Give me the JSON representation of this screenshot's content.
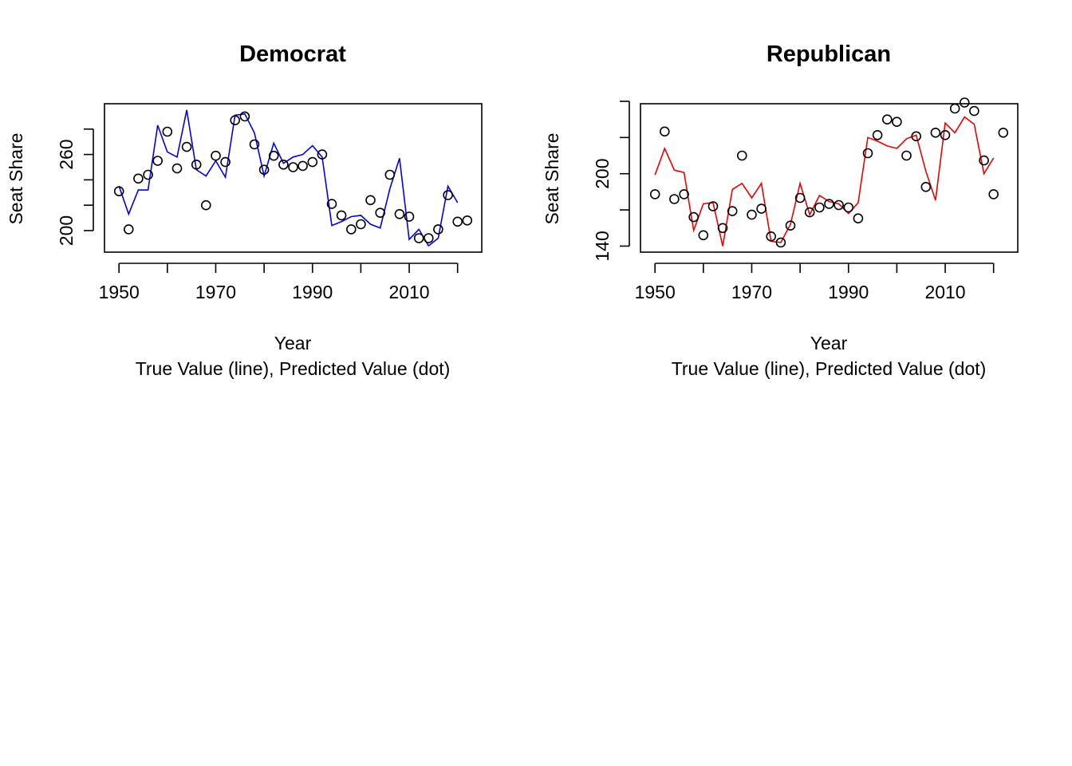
{
  "chart_data": [
    {
      "type": "line",
      "title": "Democrat",
      "xlabel": "Year",
      "subtitle": "True Value (line), Predicted Value (dot)",
      "ylabel": "Seat Share",
      "xlim": [
        1947,
        2025
      ],
      "ylim": [
        183,
        300
      ],
      "x_ticks": [
        1950,
        1960,
        1970,
        1980,
        1990,
        2000,
        2010,
        2020
      ],
      "x_tick_labels": [
        "1950",
        "1970",
        "1990",
        "2010"
      ],
      "y_ticks": [
        200,
        220,
        240,
        260,
        280
      ],
      "y_tick_labels": [
        "200",
        "260"
      ],
      "line_color": "#0000ee",
      "series": [
        {
          "kind": "line",
          "x": [
            1950,
            1952,
            1954,
            1956,
            1958,
            1960,
            1962,
            1964,
            1966,
            1968,
            1970,
            1972,
            1974,
            1976,
            1978,
            1980,
            1982,
            1984,
            1986,
            1988,
            1990,
            1992,
            1994,
            1996,
            1998,
            2000,
            2002,
            2004,
            2006,
            2008,
            2010,
            2012,
            2014,
            2016,
            2018,
            2020
          ],
          "y": [
            235,
            213,
            232,
            232,
            283,
            262,
            258,
            295,
            248,
            243,
            255,
            242,
            291,
            292,
            277,
            243,
            269,
            253,
            258,
            260,
            267,
            258,
            204,
            207,
            211,
            212,
            205,
            202,
            233,
            257,
            193,
            201,
            188,
            194,
            235,
            222
          ]
        },
        {
          "kind": "points",
          "x": [
            1950,
            1952,
            1954,
            1956,
            1958,
            1960,
            1962,
            1964,
            1966,
            1968,
            1970,
            1972,
            1974,
            1976,
            1978,
            1980,
            1982,
            1984,
            1986,
            1988,
            1990,
            1992,
            1994,
            1996,
            1998,
            2000,
            2002,
            2004,
            2006,
            2008,
            2010,
            2012,
            2014,
            2016,
            2018,
            2020,
            2022
          ],
          "y": [
            231,
            201,
            241,
            244,
            255,
            278,
            249,
            266,
            252,
            220,
            259,
            254,
            287,
            290,
            268,
            248,
            259,
            252,
            250,
            251,
            254,
            260,
            221,
            212,
            201,
            205,
            224,
            214,
            244,
            213,
            211,
            194,
            194,
            201,
            228,
            207,
            208
          ]
        }
      ]
    },
    {
      "type": "line",
      "title": "Republican",
      "xlabel": "Year",
      "subtitle": "True Value (line), Predicted Value (dot)",
      "ylabel": "Seat Share",
      "xlim": [
        1947,
        2025
      ],
      "ylim": [
        135,
        258
      ],
      "x_ticks": [
        1950,
        1960,
        1970,
        1980,
        1990,
        2000,
        2010,
        2020
      ],
      "x_tick_labels": [
        "1950",
        "1970",
        "1990",
        "2010"
      ],
      "y_ticks": [
        140,
        170,
        200,
        230,
        260
      ],
      "y_tick_labels": [
        "140",
        "200"
      ],
      "line_color": "#ee0000",
      "series": [
        {
          "kind": "line",
          "x": [
            1950,
            1952,
            1954,
            1956,
            1958,
            1960,
            1962,
            1964,
            1966,
            1968,
            1970,
            1972,
            1974,
            1976,
            1978,
            1980,
            1982,
            1984,
            1986,
            1988,
            1990,
            1992,
            1994,
            1996,
            1998,
            2000,
            2002,
            2004,
            2006,
            2008,
            2010,
            2012,
            2014,
            2016,
            2018,
            2020
          ],
          "y": [
            199,
            221,
            203,
            201,
            153,
            175,
            176,
            140,
            187,
            192,
            180,
            192,
            144,
            143,
            158,
            192,
            166,
            182,
            177,
            175,
            167,
            176,
            230,
            227,
            223,
            221,
            229,
            232,
            202,
            178,
            242,
            234,
            247,
            241,
            200,
            213
          ]
        },
        {
          "kind": "points",
          "x": [
            1950,
            1952,
            1954,
            1956,
            1958,
            1960,
            1962,
            1964,
            1966,
            1968,
            1970,
            1972,
            1974,
            1976,
            1978,
            1980,
            1982,
            1984,
            1986,
            1988,
            1990,
            1992,
            1994,
            1996,
            1998,
            2000,
            2002,
            2004,
            2006,
            2008,
            2010,
            2012,
            2014,
            2016,
            2018,
            2020,
            2022
          ],
          "y": [
            183,
            235,
            179,
            183,
            164,
            149,
            173,
            155,
            169,
            215,
            166,
            171,
            148,
            143,
            157,
            180,
            168,
            172,
            175,
            174,
            172,
            163,
            217,
            232,
            245,
            243,
            215,
            231,
            189,
            234,
            232,
            254,
            259,
            252,
            211,
            183,
            234
          ]
        }
      ]
    }
  ]
}
